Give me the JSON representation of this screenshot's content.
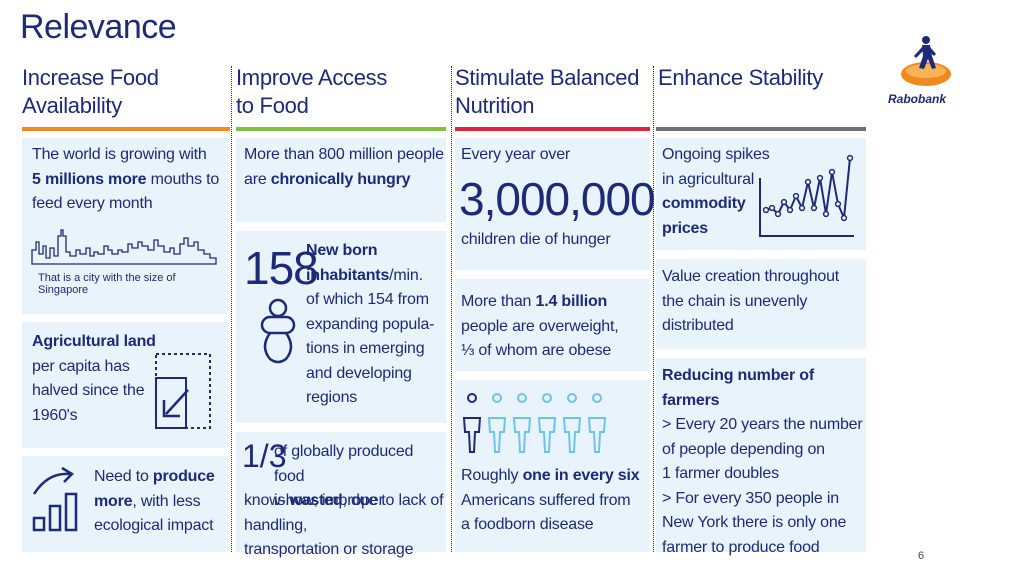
{
  "title": "Relevance",
  "page_number": "6",
  "brand": {
    "name": "Rabobank",
    "color": "#1e2a78",
    "accent": "#f08a1c"
  },
  "columns": [
    {
      "heading": "Increase Food Availability",
      "heading_line1": "Increase Food",
      "heading_line2": "Availability",
      "bar_color": "#f08a1c"
    },
    {
      "heading": "Improve Access to Food",
      "heading_line1": "Improve Access",
      "heading_line2": "to Food",
      "bar_color": "#7cc242"
    },
    {
      "heading": "Stimulate Balanced Nutrition",
      "heading_line1": "Stimulate Balanced",
      "heading_line2": "Nutrition",
      "bar_color": "#e2233d"
    },
    {
      "heading": "Enhance Stability",
      "heading_line1": "Enhance Stability",
      "heading_line2": "",
      "bar_color": "#6b6f74"
    }
  ],
  "col1": {
    "box1": {
      "l1": "The world is growing with",
      "l2_bold": "5 millions more",
      "l2_rest": " mouths to",
      "l3": "feed every month",
      "caption": "That is a city with the size of Singapore",
      "skyline_icon": "city-skyline-icon"
    },
    "box2": {
      "bold1": "Agricultural land",
      "l2": "per capita has",
      "l3": "halved since the",
      "l4": "1960's",
      "icon": "shrink-arrow-icon"
    },
    "box3": {
      "l1": "Need to ",
      "l1_bold": "produce",
      "l2_bold": "more",
      "l2_rest": ", with less",
      "l3": "ecological impact",
      "icon": "growth-chart-icon"
    }
  },
  "col2": {
    "box1": {
      "l1": "More than 800 million people",
      "l2": "are ",
      "l2_bold": "chronically hungry"
    },
    "box2": {
      "number": "158",
      "bold1": "New born",
      "bold2": "inhabitants",
      "rest2": "/min.",
      "l3": "of which 154 from",
      "l4": "expanding popula-",
      "l5": "tions in emerging",
      "l6": "and developing",
      "l7": "regions",
      "icon": "pacifier-icon"
    },
    "box3": {
      "fraction": "1/3",
      "l1": "of globally produced food",
      "l2": "is ",
      "l2_bold": "wasted",
      "l2_rest": ", due to lack of",
      "l3": "know-how, improper handling,",
      "l4": "transportation or storage"
    }
  },
  "col3": {
    "box1": {
      "l1": "Every year over",
      "number": "3,000,000",
      "l2": "children die of hunger"
    },
    "box2": {
      "l1": "More than ",
      "l1_bold": "1.4 billion",
      "l2": "people are overweight,",
      "l3": "⅓ of whom are obese"
    },
    "box3": {
      "l1": "Roughly ",
      "l1_bold": "one in every six",
      "l2": "Americans suffered from",
      "l3": "a foodborn disease",
      "icon": "people-row-icon"
    }
  },
  "col4": {
    "box1": {
      "l1": "Ongoing spikes",
      "l2": "in agricultural",
      "l3_bold": "commodity",
      "l4_bold": "prices",
      "icon": "price-spike-chart-icon"
    },
    "box2": {
      "l1": "Value creation throughout",
      "l2": "the chain is unevenly",
      "l3": "distributed"
    },
    "box3": {
      "bold1": "Reducing number of farmers",
      "l2": "> Every 20 years the number",
      "l3": "of people depending on",
      "l4": "1 farmer doubles",
      "l5": "> For every 350 people in",
      "l6": "New York there is only one",
      "l7": "farmer to produce food"
    }
  }
}
